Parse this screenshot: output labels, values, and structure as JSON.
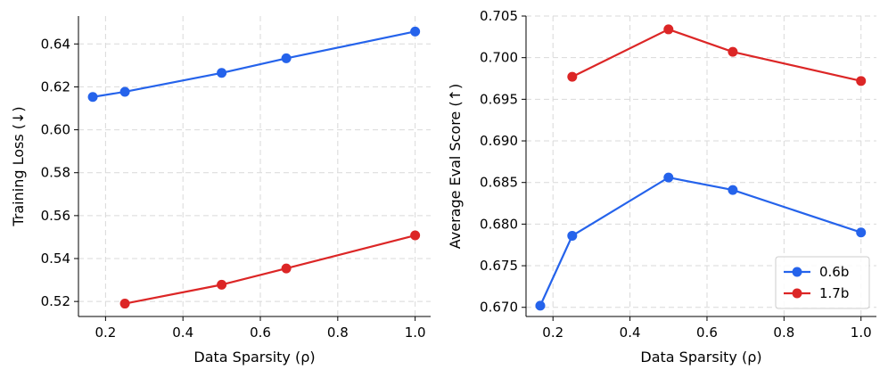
{
  "series_meta": [
    {
      "name": "0.6b",
      "color": "#2563eb"
    },
    {
      "name": "1.7b",
      "color": "#dc2626"
    }
  ],
  "chart_data": [
    {
      "type": "line",
      "title": "",
      "xlabel": "Data Sparsity (ρ)",
      "ylabel": "Training Loss (↓)",
      "xlim": [
        0.13,
        1.04
      ],
      "ylim": [
        0.513,
        0.653
      ],
      "xticks": [
        0.2,
        0.4,
        0.6,
        0.8,
        1.0
      ],
      "xtick_labels": [
        "0.2",
        "0.4",
        "0.6",
        "0.8",
        "1.0"
      ],
      "yticks": [
        0.52,
        0.54,
        0.56,
        0.58,
        0.6,
        0.62,
        0.64
      ],
      "ytick_labels": [
        "0.52",
        "0.54",
        "0.56",
        "0.58",
        "0.60",
        "0.62",
        "0.64"
      ],
      "grid": true,
      "legend": null,
      "series": [
        {
          "name": "0.6b",
          "color": "#2563eb",
          "x": [
            0.167,
            0.25,
            0.5,
            0.667,
            1.0
          ],
          "y": [
            0.6153,
            0.6177,
            0.6265,
            0.6333,
            0.6458
          ]
        },
        {
          "name": "1.7b",
          "color": "#dc2626",
          "x": [
            0.25,
            0.5,
            0.667,
            1.0
          ],
          "y": [
            0.519,
            0.5278,
            0.5354,
            0.5508
          ]
        }
      ]
    },
    {
      "type": "line",
      "title": "",
      "xlabel": "Data Sparsity (ρ)",
      "ylabel": "Average Eval Score (↑)",
      "xlim": [
        0.13,
        1.04
      ],
      "ylim": [
        0.6689,
        0.705
      ],
      "xticks": [
        0.2,
        0.4,
        0.6,
        0.8,
        1.0
      ],
      "xtick_labels": [
        "0.2",
        "0.4",
        "0.6",
        "0.8",
        "1.0"
      ],
      "yticks": [
        0.67,
        0.675,
        0.68,
        0.685,
        0.69,
        0.695,
        0.7,
        0.705
      ],
      "ytick_labels": [
        "0.670",
        "0.675",
        "0.680",
        "0.685",
        "0.690",
        "0.695",
        "0.700",
        "0.705"
      ],
      "grid": true,
      "legend": "bottom-right",
      "series": [
        {
          "name": "0.6b",
          "color": "#2563eb",
          "x": [
            0.167,
            0.25,
            0.5,
            0.667,
            1.0
          ],
          "y": [
            0.6702,
            0.6786,
            0.6856,
            0.6841,
            0.679
          ]
        },
        {
          "name": "1.7b",
          "color": "#dc2626",
          "x": [
            0.25,
            0.5,
            0.667,
            1.0
          ],
          "y": [
            0.6977,
            0.7034,
            0.7007,
            0.6972
          ]
        }
      ]
    }
  ]
}
